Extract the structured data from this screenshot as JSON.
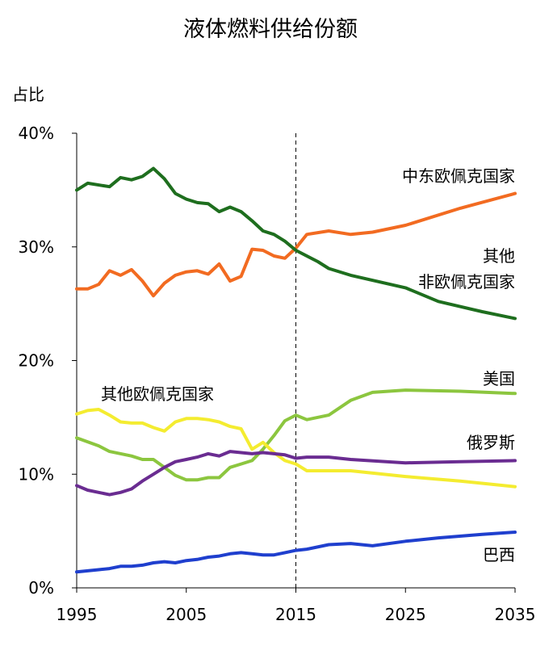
{
  "chart_data": {
    "type": "line",
    "title": "液体燃料供给份额",
    "xlabel": "",
    "ylabel": "占比",
    "xlim": [
      1995,
      2035
    ],
    "ylim": [
      0,
      40
    ],
    "x_ticks": [
      "1995",
      "2005",
      "2015",
      "2025",
      "2035"
    ],
    "y_ticks": [
      "0%",
      "10%",
      "20%",
      "30%",
      "40%"
    ],
    "reference_line": {
      "x": 2015,
      "style": "dashed"
    },
    "series": [
      {
        "name": "中东欧佩克国家",
        "color": "#f26b21",
        "points": [
          [
            1995,
            26.3
          ],
          [
            1996,
            26.3
          ],
          [
            1997,
            26.7
          ],
          [
            1998,
            27.9
          ],
          [
            1999,
            27.5
          ],
          [
            2000,
            28.0
          ],
          [
            2001,
            27.0
          ],
          [
            2002,
            25.7
          ],
          [
            2003,
            26.8
          ],
          [
            2004,
            27.5
          ],
          [
            2005,
            27.8
          ],
          [
            2006,
            27.9
          ],
          [
            2007,
            27.6
          ],
          [
            2008,
            28.5
          ],
          [
            2009,
            27.0
          ],
          [
            2010,
            27.4
          ],
          [
            2011,
            29.8
          ],
          [
            2012,
            29.7
          ],
          [
            2013,
            29.2
          ],
          [
            2014,
            29.0
          ],
          [
            2015,
            29.9
          ],
          [
            2016,
            31.1
          ],
          [
            2018,
            31.4
          ],
          [
            2020,
            31.1
          ],
          [
            2022,
            31.3
          ],
          [
            2025,
            31.9
          ],
          [
            2030,
            33.4
          ],
          [
            2035,
            34.7
          ]
        ]
      },
      {
        "name": "其他\n非欧佩克国家",
        "color": "#1e6e1e",
        "points": [
          [
            1995,
            35.0
          ],
          [
            1996,
            35.6
          ],
          [
            1998,
            35.3
          ],
          [
            1999,
            36.1
          ],
          [
            2000,
            35.9
          ],
          [
            2001,
            36.2
          ],
          [
            2002,
            36.9
          ],
          [
            2003,
            36.0
          ],
          [
            2004,
            34.7
          ],
          [
            2005,
            34.2
          ],
          [
            2006,
            33.9
          ],
          [
            2007,
            33.8
          ],
          [
            2008,
            33.1
          ],
          [
            2009,
            33.5
          ],
          [
            2010,
            33.1
          ],
          [
            2011,
            32.3
          ],
          [
            2012,
            31.4
          ],
          [
            2013,
            31.1
          ],
          [
            2014,
            30.5
          ],
          [
            2015,
            29.7
          ],
          [
            2017,
            28.7
          ],
          [
            2018,
            28.1
          ],
          [
            2020,
            27.5
          ],
          [
            2025,
            26.4
          ],
          [
            2028,
            25.2
          ],
          [
            2032,
            24.3
          ],
          [
            2035,
            23.7
          ]
        ]
      },
      {
        "name": "美国",
        "color": "#8cc63f",
        "points": [
          [
            1995,
            13.2
          ],
          [
            1997,
            12.5
          ],
          [
            1998,
            12.0
          ],
          [
            2000,
            11.6
          ],
          [
            2001,
            11.3
          ],
          [
            2002,
            11.3
          ],
          [
            2003,
            10.6
          ],
          [
            2004,
            9.9
          ],
          [
            2005,
            9.5
          ],
          [
            2006,
            9.5
          ],
          [
            2007,
            9.7
          ],
          [
            2008,
            9.7
          ],
          [
            2009,
            10.6
          ],
          [
            2010,
            10.9
          ],
          [
            2011,
            11.2
          ],
          [
            2012,
            12.2
          ],
          [
            2013,
            13.4
          ],
          [
            2014,
            14.7
          ],
          [
            2015,
            15.2
          ],
          [
            2016,
            14.8
          ],
          [
            2018,
            15.2
          ],
          [
            2020,
            16.5
          ],
          [
            2022,
            17.2
          ],
          [
            2025,
            17.4
          ],
          [
            2030,
            17.3
          ],
          [
            2035,
            17.1
          ]
        ]
      },
      {
        "name": "其他欧佩克国家",
        "color": "#f4ec30",
        "points": [
          [
            1995,
            15.3
          ],
          [
            1996,
            15.6
          ],
          [
            1997,
            15.7
          ],
          [
            1998,
            15.2
          ],
          [
            1999,
            14.6
          ],
          [
            2000,
            14.5
          ],
          [
            2001,
            14.5
          ],
          [
            2002,
            14.1
          ],
          [
            2003,
            13.8
          ],
          [
            2004,
            14.6
          ],
          [
            2005,
            14.9
          ],
          [
            2006,
            14.9
          ],
          [
            2007,
            14.8
          ],
          [
            2008,
            14.6
          ],
          [
            2009,
            14.2
          ],
          [
            2010,
            14.0
          ],
          [
            2011,
            12.2
          ],
          [
            2012,
            12.8
          ],
          [
            2013,
            11.9
          ],
          [
            2014,
            11.2
          ],
          [
            2015,
            10.9
          ],
          [
            2016,
            10.3
          ],
          [
            2020,
            10.3
          ],
          [
            2025,
            9.8
          ],
          [
            2030,
            9.4
          ],
          [
            2035,
            8.9
          ]
        ]
      },
      {
        "name": "俄罗斯",
        "color": "#6a2c91",
        "points": [
          [
            1995,
            9.0
          ],
          [
            1996,
            8.6
          ],
          [
            1997,
            8.4
          ],
          [
            1998,
            8.2
          ],
          [
            1999,
            8.4
          ],
          [
            2000,
            8.7
          ],
          [
            2001,
            9.4
          ],
          [
            2002,
            10.0
          ],
          [
            2003,
            10.6
          ],
          [
            2004,
            11.1
          ],
          [
            2005,
            11.3
          ],
          [
            2006,
            11.5
          ],
          [
            2007,
            11.8
          ],
          [
            2008,
            11.6
          ],
          [
            2009,
            12.0
          ],
          [
            2010,
            11.9
          ],
          [
            2011,
            11.8
          ],
          [
            2012,
            11.9
          ],
          [
            2013,
            11.8
          ],
          [
            2014,
            11.7
          ],
          [
            2015,
            11.4
          ],
          [
            2016,
            11.5
          ],
          [
            2018,
            11.5
          ],
          [
            2020,
            11.3
          ],
          [
            2025,
            11.0
          ],
          [
            2030,
            11.1
          ],
          [
            2035,
            11.2
          ]
        ]
      },
      {
        "name": "巴西",
        "color": "#1f3fce",
        "points": [
          [
            1995,
            1.4
          ],
          [
            1996,
            1.5
          ],
          [
            1997,
            1.6
          ],
          [
            1998,
            1.7
          ],
          [
            1999,
            1.9
          ],
          [
            2000,
            1.9
          ],
          [
            2001,
            2.0
          ],
          [
            2002,
            2.2
          ],
          [
            2003,
            2.3
          ],
          [
            2004,
            2.2
          ],
          [
            2005,
            2.4
          ],
          [
            2006,
            2.5
          ],
          [
            2007,
            2.7
          ],
          [
            2008,
            2.8
          ],
          [
            2009,
            3.0
          ],
          [
            2010,
            3.1
          ],
          [
            2011,
            3.0
          ],
          [
            2012,
            2.9
          ],
          [
            2013,
            2.9
          ],
          [
            2014,
            3.1
          ],
          [
            2015,
            3.3
          ],
          [
            2016,
            3.4
          ],
          [
            2018,
            3.8
          ],
          [
            2020,
            3.9
          ],
          [
            2022,
            3.7
          ],
          [
            2025,
            4.1
          ],
          [
            2028,
            4.4
          ],
          [
            2032,
            4.7
          ],
          [
            2035,
            4.9
          ]
        ]
      }
    ]
  }
}
